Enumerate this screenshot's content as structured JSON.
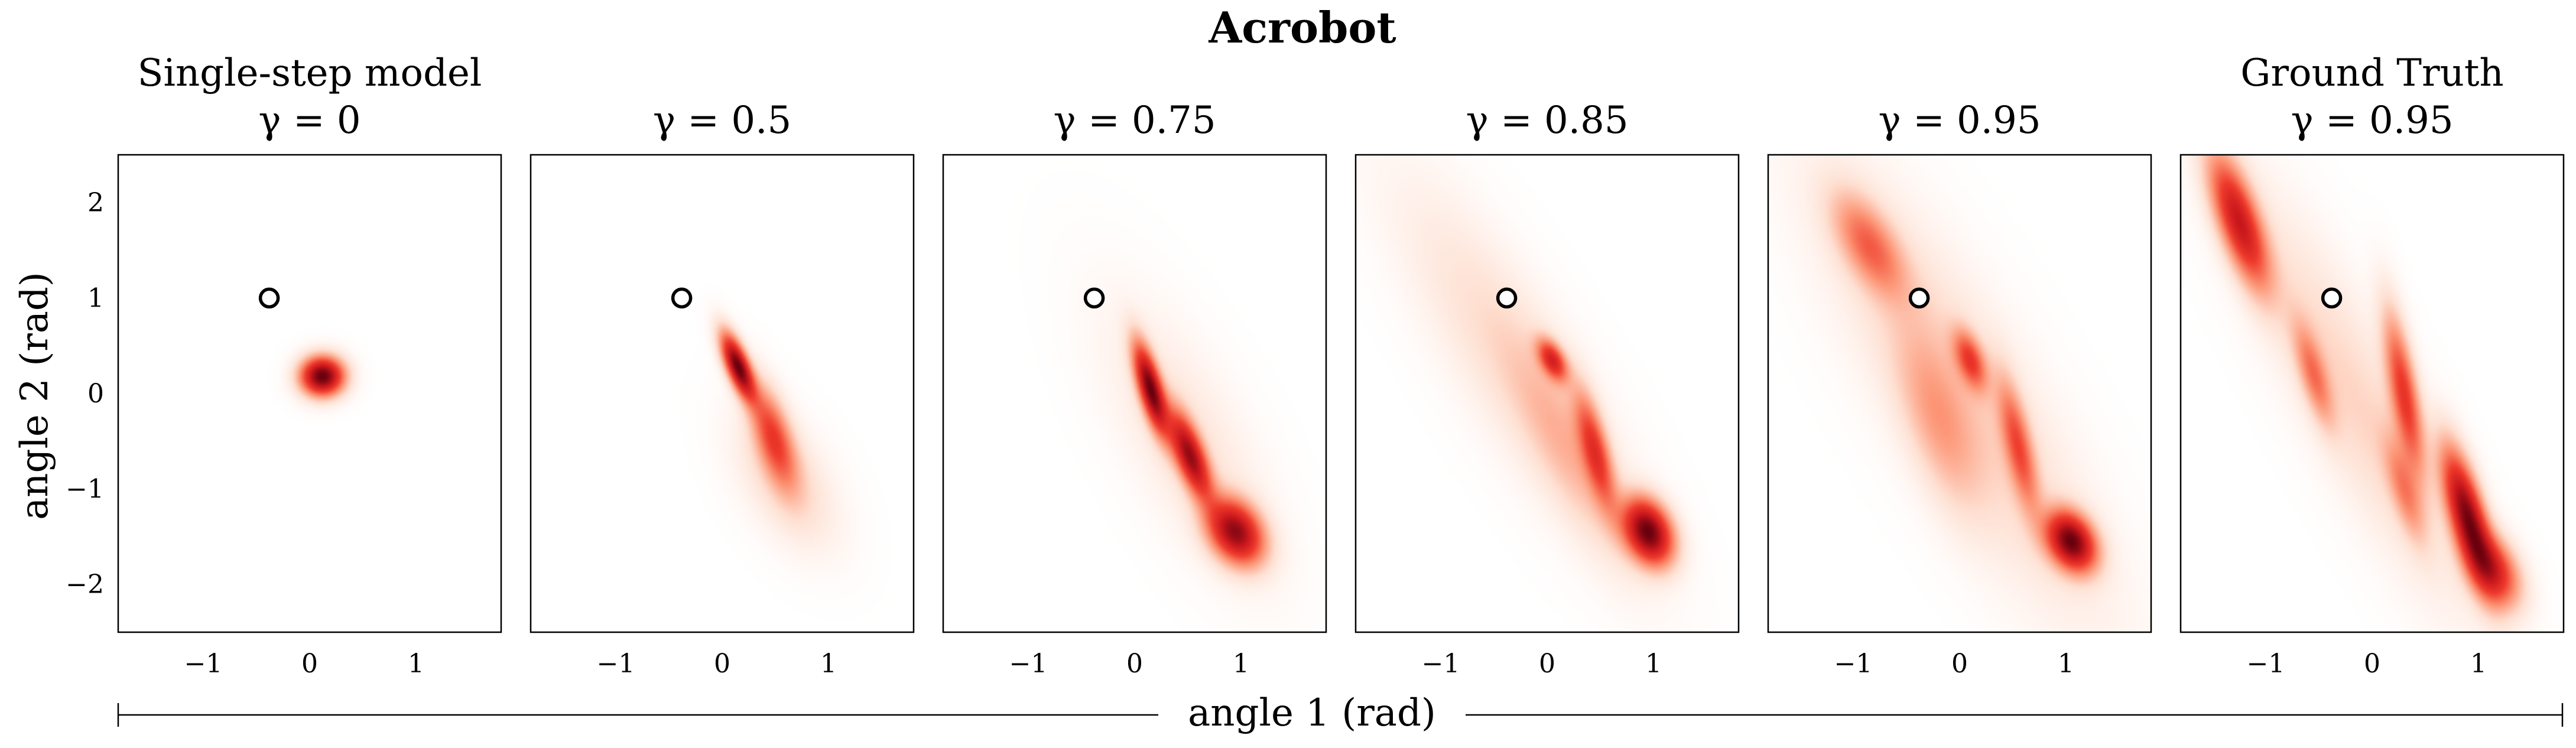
{
  "title": "Acrobot",
  "xlabel": "angle 1 (rad)",
  "ylabel": "angle 2 (rad)",
  "colors": {
    "density_low": "#fff5f0",
    "density_mid": "#ef3b2c",
    "density_high": "#67000d",
    "marker": "#000000"
  },
  "chart_data": {
    "type": "heatmap",
    "xlim": [
      -1.8,
      1.8
    ],
    "ylim": [
      -2.5,
      2.5
    ],
    "xticks": [
      -1,
      0,
      1
    ],
    "yticks": [
      2,
      1,
      0,
      -1,
      -2
    ],
    "xtick_labels": [
      "−1",
      "0",
      "1"
    ],
    "ytick_labels": [
      "2",
      "1",
      "0",
      "−1",
      "−2"
    ],
    "grid": false,
    "legend": "none",
    "start_state": {
      "x": -0.38,
      "y": 1.0
    },
    "panels": [
      {
        "title": "Single-step model",
        "subtitle": "γ = 0",
        "blobs": [
          {
            "x": 0.12,
            "y": 0.18,
            "sx": 0.13,
            "sy": 0.13,
            "rho": 0.0,
            "w": 1.0
          }
        ]
      },
      {
        "title": "",
        "subtitle": "γ = 0.5",
        "blobs": [
          {
            "x": 0.15,
            "y": 0.28,
            "sx": 0.1,
            "sy": 0.22,
            "rho": -0.7,
            "w": 1.0
          },
          {
            "x": 0.48,
            "y": -0.45,
            "sx": 0.14,
            "sy": 0.35,
            "rho": -0.6,
            "w": 0.45
          },
          {
            "x": 0.6,
            "y": -0.9,
            "sx": 0.3,
            "sy": 0.45,
            "rho": -0.5,
            "w": 0.12
          }
        ]
      },
      {
        "title": "",
        "subtitle": "γ = 0.75",
        "blobs": [
          {
            "x": 0.15,
            "y": 0.05,
            "sx": 0.1,
            "sy": 0.3,
            "rho": -0.7,
            "w": 1.0
          },
          {
            "x": 0.52,
            "y": -0.65,
            "sx": 0.13,
            "sy": 0.3,
            "rho": -0.7,
            "w": 0.85
          },
          {
            "x": 0.95,
            "y": -1.45,
            "sx": 0.17,
            "sy": 0.22,
            "rho": -0.3,
            "w": 0.9
          },
          {
            "x": 0.5,
            "y": -0.5,
            "sx": 0.5,
            "sy": 0.9,
            "rho": -0.7,
            "w": 0.08
          }
        ]
      },
      {
        "title": "",
        "subtitle": "γ = 0.85",
        "blobs": [
          {
            "x": 0.05,
            "y": 0.35,
            "sx": 0.09,
            "sy": 0.14,
            "rho": -0.5,
            "w": 0.55
          },
          {
            "x": 0.45,
            "y": -0.6,
            "sx": 0.12,
            "sy": 0.4,
            "rho": -0.7,
            "w": 0.45
          },
          {
            "x": 0.95,
            "y": -1.45,
            "sx": 0.15,
            "sy": 0.22,
            "rho": -0.3,
            "w": 0.95
          },
          {
            "x": -0.3,
            "y": 0.3,
            "sx": 0.7,
            "sy": 1.2,
            "rho": -0.85,
            "w": 0.1
          },
          {
            "x": 0.2,
            "y": -0.6,
            "sx": 0.35,
            "sy": 0.7,
            "rho": -0.8,
            "w": 0.12
          }
        ]
      },
      {
        "title": "",
        "subtitle": "γ = 0.95",
        "blobs": [
          {
            "x": -0.85,
            "y": 1.55,
            "sx": 0.22,
            "sy": 0.35,
            "rho": -0.6,
            "w": 0.35
          },
          {
            "x": 0.1,
            "y": 0.35,
            "sx": 0.1,
            "sy": 0.2,
            "rho": -0.5,
            "w": 0.45
          },
          {
            "x": 0.55,
            "y": -0.55,
            "sx": 0.12,
            "sy": 0.45,
            "rho": -0.7,
            "w": 0.4
          },
          {
            "x": 1.05,
            "y": -1.55,
            "sx": 0.15,
            "sy": 0.2,
            "rho": -0.3,
            "w": 1.0
          },
          {
            "x": 0.0,
            "y": 0.0,
            "sx": 0.85,
            "sy": 1.5,
            "rho": -0.85,
            "w": 0.13
          },
          {
            "x": -0.2,
            "y": -0.3,
            "sx": 0.25,
            "sy": 0.6,
            "rho": -0.6,
            "w": 0.18
          }
        ]
      },
      {
        "title": "Ground Truth",
        "subtitle": "γ = 0.95",
        "blobs": [
          {
            "x": -1.25,
            "y": 1.8,
            "sx": 0.18,
            "sy": 0.45,
            "rho": -0.7,
            "w": 0.7
          },
          {
            "x": 0.3,
            "y": 0.0,
            "sx": 0.12,
            "sy": 0.55,
            "rho": -0.7,
            "w": 0.5
          },
          {
            "x": 0.9,
            "y": -1.3,
            "sx": 0.15,
            "sy": 0.45,
            "rho": -0.7,
            "w": 0.95
          },
          {
            "x": 1.15,
            "y": -1.85,
            "sx": 0.16,
            "sy": 0.25,
            "rho": -0.4,
            "w": 0.55
          },
          {
            "x": -0.55,
            "y": 0.2,
            "sx": 0.12,
            "sy": 0.35,
            "rho": -0.7,
            "w": 0.3
          },
          {
            "x": 0.3,
            "y": -1.0,
            "sx": 0.12,
            "sy": 0.35,
            "rho": -0.7,
            "w": 0.25
          },
          {
            "x": -0.2,
            "y": 0.0,
            "sx": 0.7,
            "sy": 1.4,
            "rho": -0.88,
            "w": 0.12
          }
        ]
      }
    ]
  }
}
